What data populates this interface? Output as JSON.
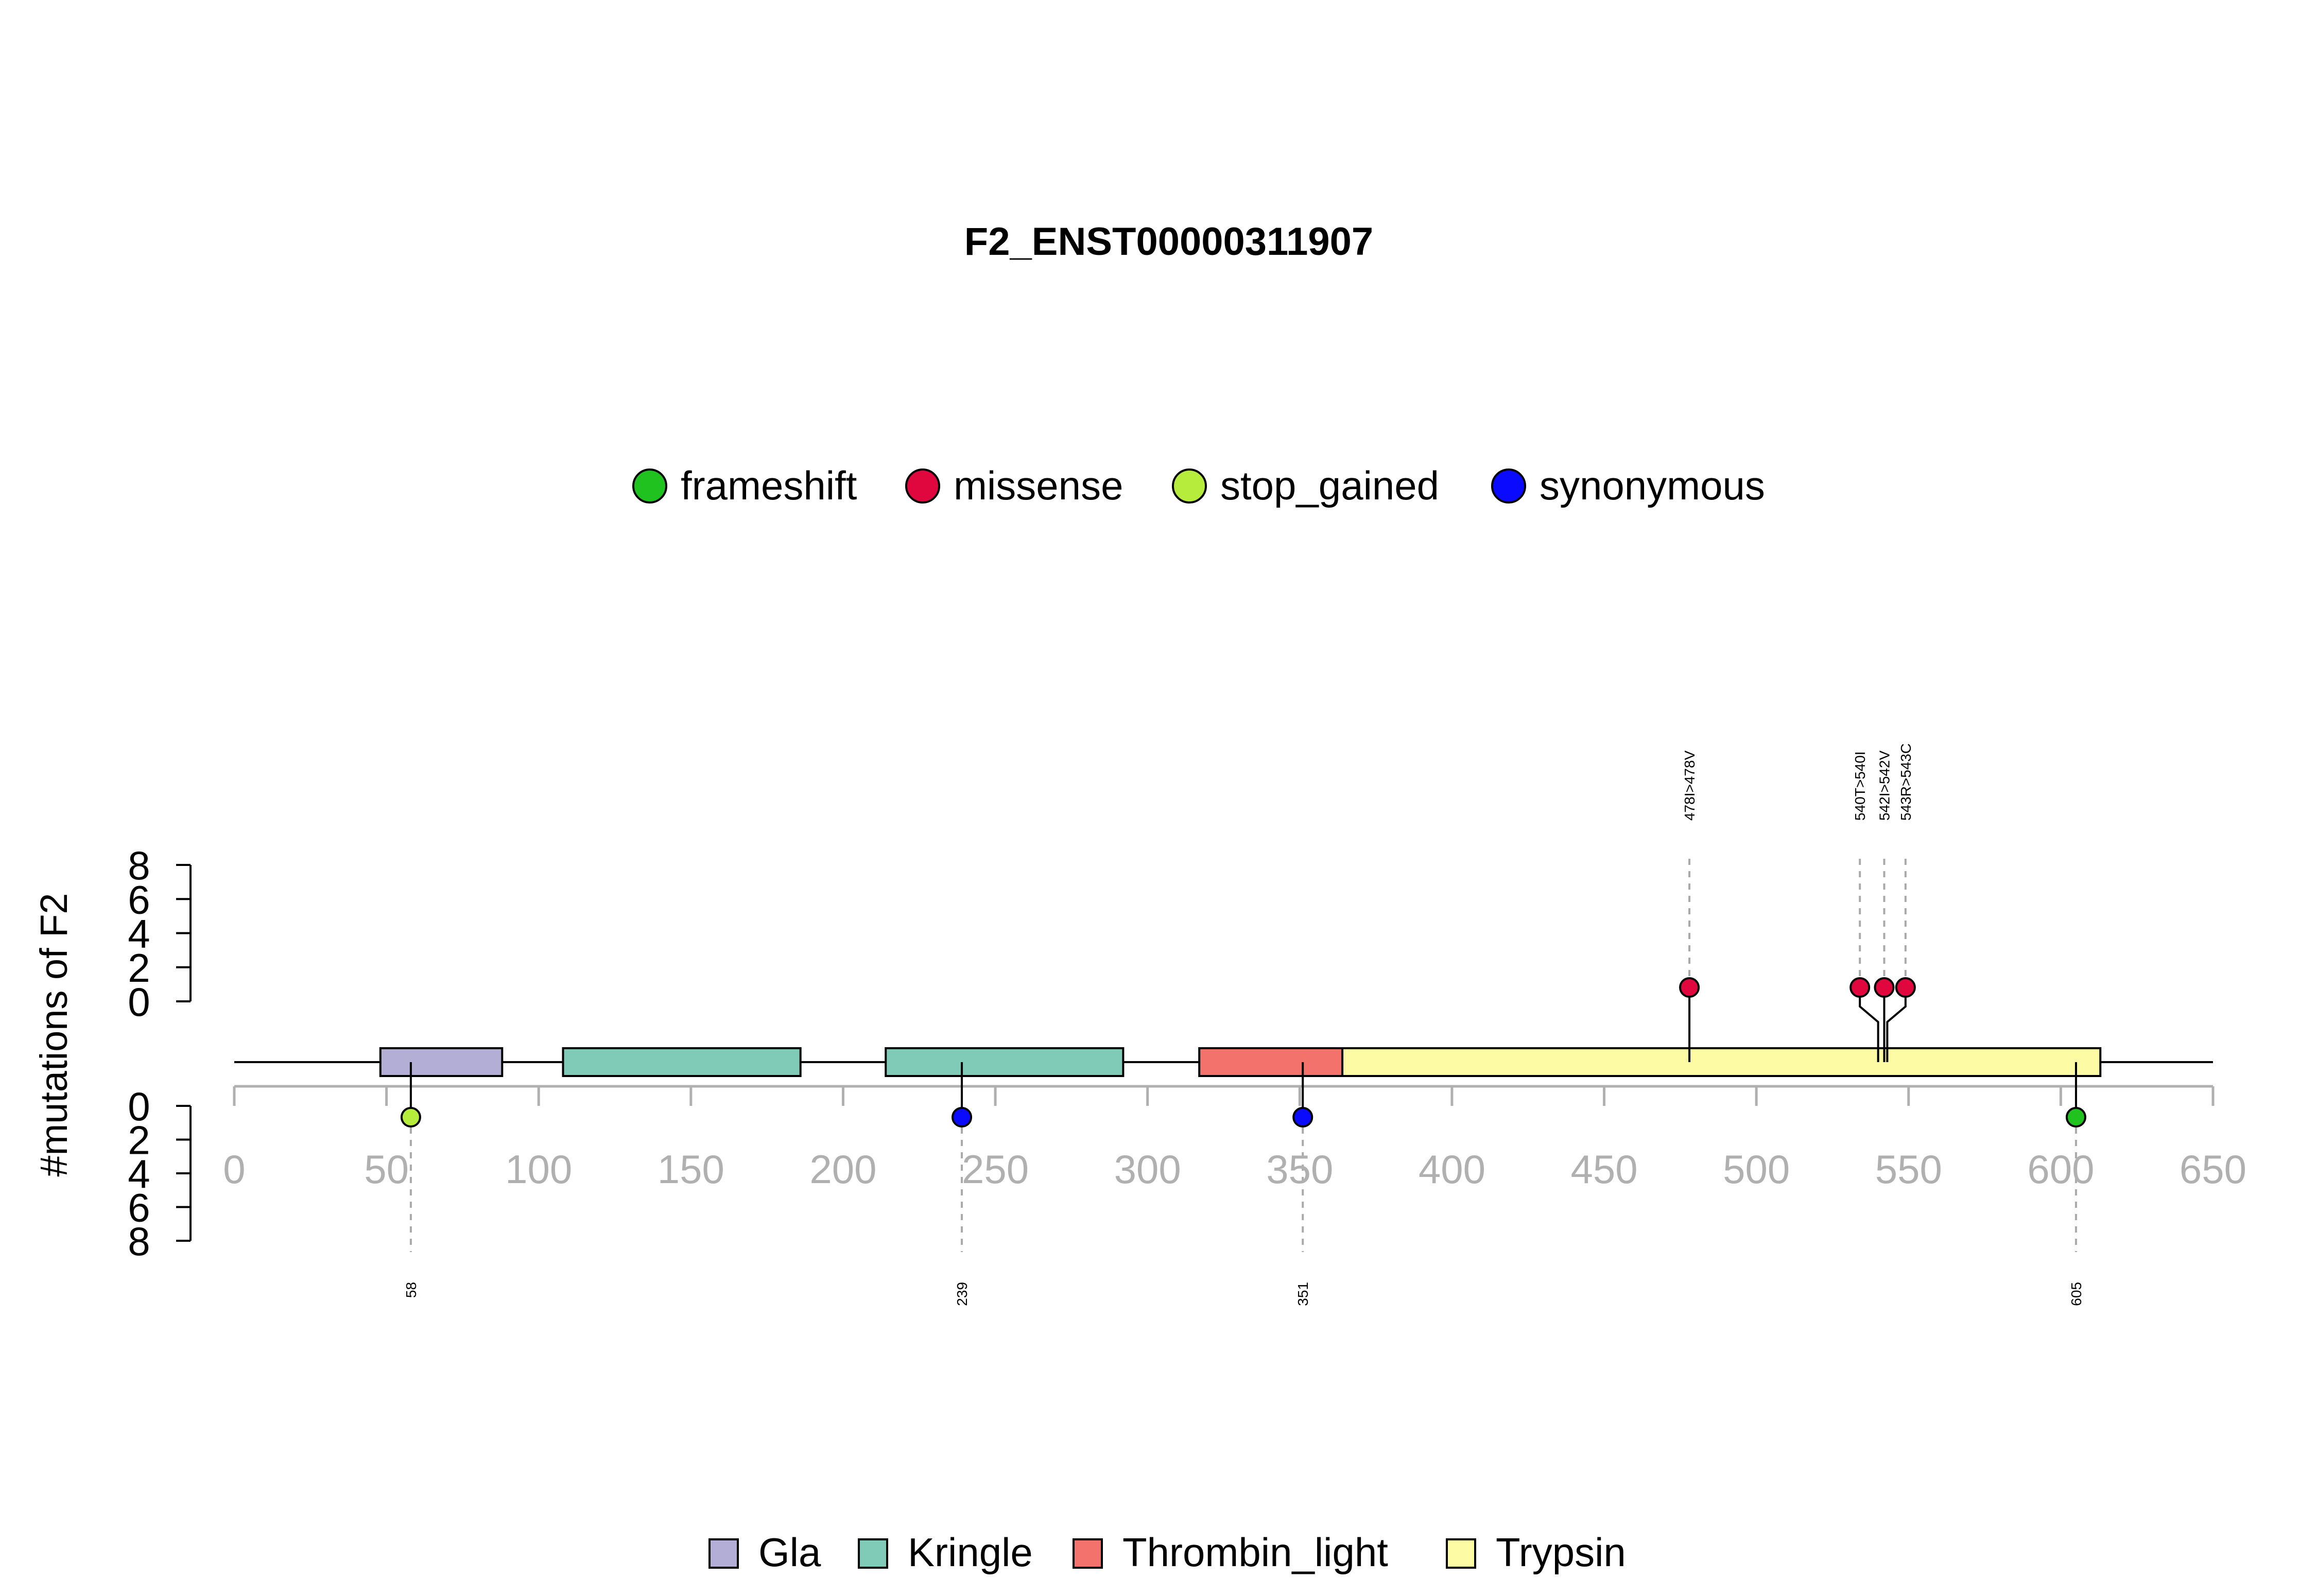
{
  "chart_data": {
    "type": "lollipop",
    "title": "F2_ENST00000311907",
    "ylabel": "#mutations of F2",
    "xlim": [
      0,
      650
    ],
    "x_ticks": [
      "0",
      "50",
      "100",
      "150",
      "200",
      "250",
      "300",
      "350",
      "400",
      "450",
      "500",
      "550",
      "600",
      "650"
    ],
    "y_ticks": [
      "8",
      "6",
      "4",
      "2",
      "0"
    ],
    "y_ticks_bottom": [
      "0",
      "2",
      "4",
      "6",
      "8"
    ],
    "ylim": [
      0,
      8
    ],
    "protein_length": 622,
    "mutation_legend": [
      {
        "name": "frameshift",
        "color": "#1fc21f"
      },
      {
        "name": "missense",
        "color": "#e0073f"
      },
      {
        "name": "stop_gained",
        "color": "#b6ec3c"
      },
      {
        "name": "synonymous",
        "color": "#0a0aff"
      }
    ],
    "domains": [
      {
        "name": "Gla",
        "start": 48,
        "end": 88,
        "color": "#b3aed6"
      },
      {
        "name": "Kringle",
        "start": 108,
        "end": 186,
        "color": "#80cbb7"
      },
      {
        "name": "Kringle",
        "start": 214,
        "end": 292,
        "color": "#80cbb7"
      },
      {
        "name": "Thrombin_light",
        "start": 317,
        "end": 364,
        "color": "#f4726c"
      },
      {
        "name": "Trypsin",
        "start": 364,
        "end": 613,
        "color": "#fdfba4"
      }
    ],
    "domain_legend": [
      {
        "name": "Gla",
        "color": "#b3aed6"
      },
      {
        "name": "Kringle",
        "color": "#80cbb7"
      },
      {
        "name": "Thrombin_light",
        "color": "#f4726c"
      },
      {
        "name": "Trypsin",
        "color": "#fdfba4"
      }
    ],
    "mutations_top": [
      {
        "position": 478,
        "display_x": 478,
        "label": "478I>478V",
        "type": "missense",
        "count": 1
      },
      {
        "position": 540,
        "display_x": 534,
        "label": "540T>540I",
        "type": "missense",
        "count": 1
      },
      {
        "position": 542,
        "display_x": 542,
        "label": "542I>542V",
        "type": "missense",
        "count": 1
      },
      {
        "position": 543,
        "display_x": 549,
        "label": "543R>543C",
        "type": "missense",
        "count": 1
      }
    ],
    "mutations_bottom": [
      {
        "position": 58,
        "label": "58",
        "type": "stop_gained",
        "count": 1
      },
      {
        "position": 239,
        "label": "239",
        "type": "synonymous",
        "count": 1
      },
      {
        "position": 351,
        "label": "351",
        "type": "synonymous",
        "count": 1
      },
      {
        "position": 605,
        "label": "605",
        "type": "frameshift",
        "count": 1
      }
    ]
  }
}
